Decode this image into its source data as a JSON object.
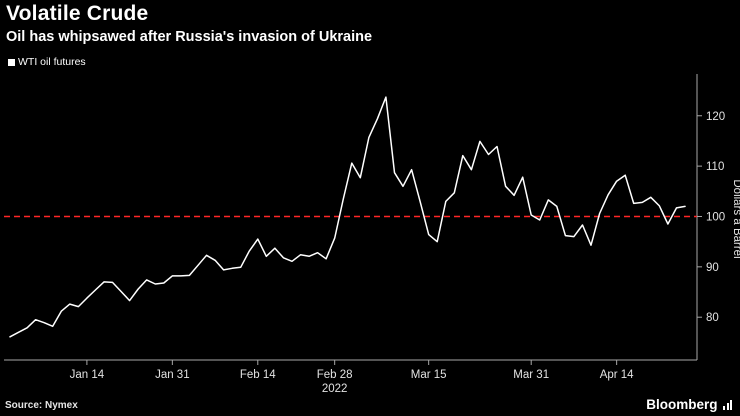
{
  "header": {
    "title": "Volatile Crude",
    "subtitle": "Oil has whipsawed after Russia's invasion of Ukraine"
  },
  "legend": {
    "label": "WTI oil futures"
  },
  "footer": {
    "source": "Source: Nymex",
    "brand": "Bloomberg"
  },
  "colors": {
    "background": "#000000",
    "line": "#ffffff",
    "reference": "#ff2626",
    "axis": "#a8a8a8",
    "tick_text": "#e2e2e2"
  },
  "chart_data": {
    "type": "line",
    "series_name": "WTI oil futures",
    "ylabel": "Dollars a Barrel",
    "ylim": [
      71.5,
      127.5
    ],
    "yticks": [
      80,
      90,
      100,
      110,
      120
    ],
    "reference_line": {
      "value": 100,
      "style": "dashed",
      "color": "#ff2626"
    },
    "xticks": [
      "Jan 14",
      "Jan 31",
      "Feb 14",
      "Feb 28",
      "Mar 15",
      "Mar 31",
      "Apr 14"
    ],
    "year_label": {
      "text": "2022",
      "under_tick": "Feb 28"
    },
    "dates": [
      "Jan 3",
      "Jan 4",
      "Jan 5",
      "Jan 6",
      "Jan 7",
      "Jan 10",
      "Jan 11",
      "Jan 12",
      "Jan 13",
      "Jan 14",
      "Jan 18",
      "Jan 19",
      "Jan 20",
      "Jan 21",
      "Jan 24",
      "Jan 25",
      "Jan 26",
      "Jan 27",
      "Jan 28",
      "Jan 31",
      "Feb 1",
      "Feb 2",
      "Feb 3",
      "Feb 4",
      "Feb 7",
      "Feb 8",
      "Feb 9",
      "Feb 10",
      "Feb 11",
      "Feb 14",
      "Feb 15",
      "Feb 16",
      "Feb 17",
      "Feb 18",
      "Feb 22",
      "Feb 23",
      "Feb 24",
      "Feb 25",
      "Feb 28",
      "Mar 1",
      "Mar 2",
      "Mar 3",
      "Mar 4",
      "Mar 7",
      "Mar 8",
      "Mar 9",
      "Mar 10",
      "Mar 11",
      "Mar 14",
      "Mar 15",
      "Mar 16",
      "Mar 17",
      "Mar 18",
      "Mar 21",
      "Mar 22",
      "Mar 23",
      "Mar 24",
      "Mar 25",
      "Mar 28",
      "Mar 29",
      "Mar 30",
      "Mar 31",
      "Apr 1",
      "Apr 4",
      "Apr 5",
      "Apr 6",
      "Apr 7",
      "Apr 8",
      "Apr 11",
      "Apr 12",
      "Apr 13",
      "Apr 14",
      "Apr 18",
      "Apr 19",
      "Apr 20",
      "Apr 21",
      "Apr 22",
      "Apr 25",
      "Apr 26",
      "Apr 27"
    ],
    "values": [
      76.1,
      77.0,
      77.9,
      79.5,
      78.9,
      78.2,
      81.2,
      82.6,
      82.1,
      83.8,
      85.4,
      87.0,
      86.9,
      85.1,
      83.3,
      85.6,
      87.4,
      86.6,
      86.8,
      88.2,
      88.2,
      88.3,
      90.3,
      92.3,
      91.3,
      89.4,
      89.7,
      89.9,
      93.1,
      95.5,
      92.1,
      93.7,
      91.8,
      91.1,
      92.4,
      92.1,
      92.8,
      91.6,
      95.7,
      103.4,
      110.6,
      107.7,
      115.7,
      119.4,
      123.7,
      108.7,
      106.0,
      109.3,
      103.0,
      96.4,
      95.0,
      103.0,
      104.7,
      112.1,
      109.3,
      114.9,
      112.3,
      113.9,
      106.0,
      104.2,
      107.8,
      100.3,
      99.3,
      103.3,
      102.0,
      96.2,
      96.0,
      98.3,
      94.3,
      100.6,
      104.3,
      107.0,
      108.2,
      102.6,
      102.8,
      103.8,
      102.1,
      98.5,
      101.7,
      102.0
    ]
  }
}
